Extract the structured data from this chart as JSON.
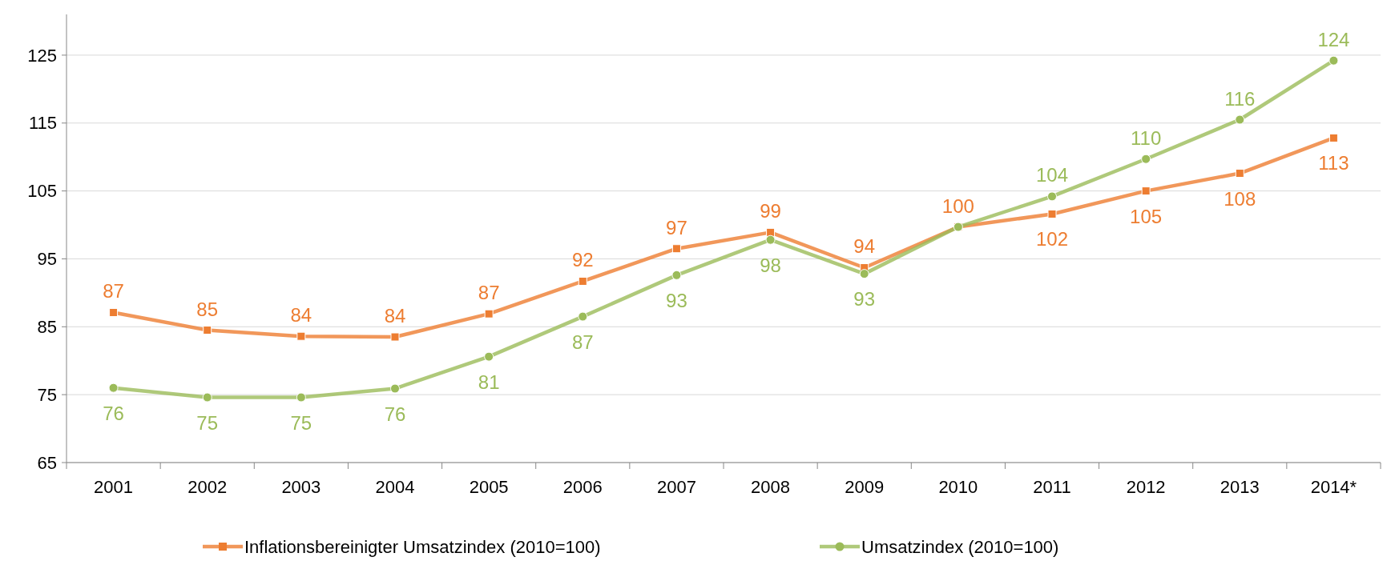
{
  "chart_data": {
    "type": "line",
    "categories": [
      "2001",
      "2002",
      "2003",
      "2004",
      "2005",
      "2006",
      "2007",
      "2008",
      "2009",
      "2010",
      "2011",
      "2012",
      "2013",
      "2014*"
    ],
    "series": [
      {
        "name": "Inflationsbereinigter Umsatzindex (2010=100)",
        "color": "#ed7d31",
        "marker": "square",
        "values": [
          87.1,
          84.5,
          83.6,
          83.5,
          86.9,
          91.7,
          96.5,
          98.9,
          93.7,
          99.7,
          101.6,
          105,
          107.6,
          112.8
        ],
        "value_labels": [
          "87",
          "85",
          "84",
          "84",
          "87",
          "92",
          "97",
          "99",
          "94",
          "100",
          "102",
          "105",
          "108",
          "113"
        ]
      },
      {
        "name": "Umsatzindex (2010=100)",
        "color": "#9bbb59",
        "marker": "circle",
        "values": [
          76,
          74.6,
          74.6,
          75.9,
          80.6,
          86.5,
          92.6,
          97.8,
          92.8,
          99.7,
          104.2,
          109.7,
          115.5,
          124.2
        ],
        "value_labels": [
          "76",
          "75",
          "75",
          "76",
          "81",
          "87",
          "93",
          "98",
          "93",
          null,
          "104",
          "110",
          "116",
          "124"
        ]
      }
    ],
    "ylim": [
      65,
      131
    ],
    "yticks": [
      65,
      75,
      85,
      95,
      105,
      115,
      125
    ],
    "grid": "y",
    "legend": "bottom",
    "line_style": "solid"
  }
}
